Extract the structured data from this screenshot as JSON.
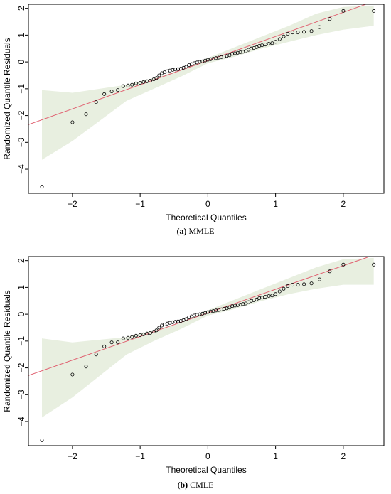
{
  "chart_data": [
    {
      "type": "scatter",
      "panel_letter": "(a)",
      "panel_name": "MMLE",
      "xlabel": "Theoretical Quantiles",
      "ylabel": "Randomized Quantile Residuals",
      "xlim": [
        -2.65,
        2.6
      ],
      "ylim": [
        -4.9,
        2.15
      ],
      "xticks": [
        -2,
        -1,
        0,
        1,
        2
      ],
      "yticks": [
        -4,
        -3,
        -2,
        -1,
        0,
        1,
        2
      ],
      "grid": false,
      "reference_line": {
        "intercept": 0.05,
        "slope": 0.9,
        "color": "#e06070"
      },
      "band_color": "#e8efe0",
      "band": {
        "x": [
          -2.45,
          -2.0,
          -1.6,
          -1.2,
          -0.8,
          -0.4,
          0.0,
          0.4,
          0.8,
          1.2,
          1.6,
          2.0,
          2.45
        ],
        "lower": [
          -3.65,
          -2.95,
          -2.2,
          -1.45,
          -1.0,
          -0.55,
          -0.05,
          0.2,
          0.5,
          0.75,
          1.0,
          1.2,
          1.35
        ],
        "upper": [
          -1.05,
          -1.15,
          -1.0,
          -0.85,
          -0.6,
          -0.3,
          0.15,
          0.55,
          0.95,
          1.35,
          1.8,
          2.05,
          2.1
        ]
      },
      "points": {
        "x": [
          -2.45,
          -2.0,
          -1.8,
          -1.65,
          -1.53,
          -1.42,
          -1.33,
          -1.25,
          -1.18,
          -1.12,
          -1.06,
          -1.0,
          -0.95,
          -0.9,
          -0.85,
          -0.8,
          -0.76,
          -0.72,
          -0.68,
          -0.64,
          -0.6,
          -0.56,
          -0.52,
          -0.48,
          -0.44,
          -0.4,
          -0.36,
          -0.32,
          -0.28,
          -0.24,
          -0.2,
          -0.16,
          -0.12,
          -0.08,
          -0.04,
          0.0,
          0.04,
          0.08,
          0.12,
          0.16,
          0.2,
          0.24,
          0.28,
          0.32,
          0.36,
          0.4,
          0.44,
          0.48,
          0.52,
          0.56,
          0.6,
          0.64,
          0.68,
          0.72,
          0.76,
          0.8,
          0.85,
          0.9,
          0.95,
          1.0,
          1.06,
          1.12,
          1.18,
          1.25,
          1.33,
          1.42,
          1.53,
          1.65,
          1.8,
          2.0,
          2.45
        ],
        "y": [
          -4.65,
          -2.25,
          -1.95,
          -1.5,
          -1.2,
          -1.1,
          -1.05,
          -0.9,
          -0.88,
          -0.85,
          -0.8,
          -0.78,
          -0.75,
          -0.72,
          -0.7,
          -0.65,
          -0.6,
          -0.5,
          -0.42,
          -0.38,
          -0.35,
          -0.32,
          -0.3,
          -0.28,
          -0.27,
          -0.25,
          -0.22,
          -0.18,
          -0.12,
          -0.08,
          -0.05,
          -0.02,
          0.0,
          0.02,
          0.05,
          0.08,
          0.1,
          0.12,
          0.14,
          0.16,
          0.18,
          0.2,
          0.22,
          0.25,
          0.3,
          0.32,
          0.34,
          0.36,
          0.38,
          0.4,
          0.45,
          0.5,
          0.52,
          0.55,
          0.6,
          0.62,
          0.65,
          0.68,
          0.7,
          0.75,
          0.85,
          0.95,
          1.05,
          1.1,
          1.1,
          1.12,
          1.15,
          1.3,
          1.6,
          1.9,
          1.9
        ]
      }
    },
    {
      "type": "scatter",
      "panel_letter": "(b)",
      "panel_name": "CMLE",
      "xlabel": "Theoretical Quantiles",
      "ylabel": "Randomized Quantile Residuals",
      "xlim": [
        -2.65,
        2.6
      ],
      "ylim": [
        -4.9,
        2.15
      ],
      "xticks": [
        -2,
        -1,
        0,
        1,
        2
      ],
      "yticks": [
        -4,
        -3,
        -2,
        -1,
        0,
        1,
        2
      ],
      "grid": false,
      "reference_line": {
        "intercept": 0.05,
        "slope": 0.88,
        "color": "#e06070"
      },
      "band_color": "#e8efe0",
      "band": {
        "x": [
          -2.45,
          -2.0,
          -1.6,
          -1.2,
          -0.8,
          -0.4,
          0.0,
          0.4,
          0.8,
          1.2,
          1.6,
          2.0,
          2.45
        ],
        "lower": [
          -3.85,
          -3.1,
          -2.3,
          -1.5,
          -1.0,
          -0.55,
          -0.05,
          0.2,
          0.5,
          0.75,
          0.95,
          1.1,
          1.1
        ],
        "upper": [
          -0.9,
          -1.05,
          -0.95,
          -0.85,
          -0.6,
          -0.3,
          0.15,
          0.55,
          0.95,
          1.35,
          1.75,
          2.05,
          2.1
        ]
      },
      "points": {
        "x": [
          -2.45,
          -2.0,
          -1.8,
          -1.65,
          -1.53,
          -1.42,
          -1.33,
          -1.25,
          -1.18,
          -1.12,
          -1.06,
          -1.0,
          -0.95,
          -0.9,
          -0.85,
          -0.8,
          -0.76,
          -0.72,
          -0.68,
          -0.64,
          -0.6,
          -0.56,
          -0.52,
          -0.48,
          -0.44,
          -0.4,
          -0.36,
          -0.32,
          -0.28,
          -0.24,
          -0.2,
          -0.16,
          -0.12,
          -0.08,
          -0.04,
          0.0,
          0.04,
          0.08,
          0.12,
          0.16,
          0.2,
          0.24,
          0.28,
          0.32,
          0.36,
          0.4,
          0.44,
          0.48,
          0.52,
          0.56,
          0.6,
          0.64,
          0.68,
          0.72,
          0.76,
          0.8,
          0.85,
          0.9,
          0.95,
          1.0,
          1.06,
          1.12,
          1.18,
          1.25,
          1.33,
          1.42,
          1.53,
          1.65,
          1.8,
          2.0,
          2.45
        ],
        "y": [
          -4.7,
          -2.25,
          -1.95,
          -1.5,
          -1.2,
          -1.05,
          -1.05,
          -0.9,
          -0.88,
          -0.85,
          -0.8,
          -0.78,
          -0.75,
          -0.72,
          -0.7,
          -0.65,
          -0.6,
          -0.5,
          -0.42,
          -0.38,
          -0.35,
          -0.32,
          -0.3,
          -0.28,
          -0.27,
          -0.25,
          -0.22,
          -0.18,
          -0.12,
          -0.08,
          -0.05,
          -0.02,
          0.0,
          0.02,
          0.05,
          0.08,
          0.1,
          0.12,
          0.14,
          0.16,
          0.18,
          0.2,
          0.22,
          0.25,
          0.3,
          0.32,
          0.34,
          0.36,
          0.38,
          0.4,
          0.45,
          0.5,
          0.52,
          0.55,
          0.6,
          0.62,
          0.65,
          0.68,
          0.7,
          0.75,
          0.85,
          0.95,
          1.05,
          1.1,
          1.1,
          1.12,
          1.15,
          1.3,
          1.6,
          1.85,
          1.85
        ]
      }
    }
  ]
}
